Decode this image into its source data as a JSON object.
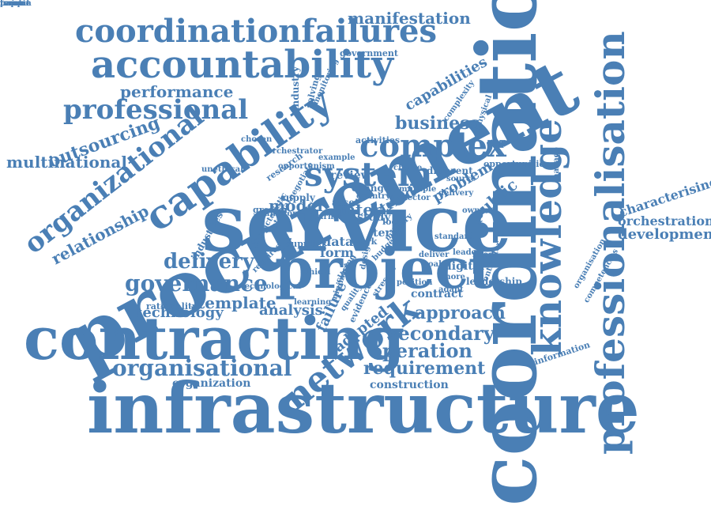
{
  "colors": {
    "word": "#4a7fb5",
    "background": "#ffffff"
  },
  "words": [
    "coordination",
    "procurement",
    "service",
    "infrastructure",
    "contracting",
    "project",
    "professionalisation",
    "knowledge",
    "capability",
    "network",
    "accountability",
    "coordinationfailures",
    "system",
    "complex",
    "organizational",
    "professional",
    "governance",
    "organisational",
    "delivery",
    "secondary",
    "operation",
    "requirement",
    "approach",
    "outsourcing",
    "multinational",
    "relationship",
    "performance",
    "business",
    "manifestation",
    "template",
    "technology",
    "analysis",
    "failure",
    "adapted",
    "problem",
    "public",
    "capabilities",
    "model",
    "inter",
    "development",
    "orchestration",
    "characterising",
    "information",
    "organization",
    "construction",
    "contract",
    "leadership",
    "digital",
    "data",
    "form",
    "review",
    "triad",
    "study",
    "term",
    "government",
    "industries",
    "evidence",
    "local",
    "leader",
    "opportunities",
    "organisation",
    "competencies",
    "different",
    "change",
    "supply",
    "asset",
    "greater",
    "industry",
    "solving",
    "monitoring",
    "complexity",
    "physical",
    "activities",
    "learning",
    "rationality",
    "technological",
    "supplier",
    "work",
    "more",
    "need",
    "stresses",
    "minimise",
    "standard",
    "quality",
    "ethical",
    "unethical",
    "chosen",
    "orchestrator",
    "opportunism",
    "example",
    "research",
    "function",
    "country",
    "sector",
    "delivery",
    "source",
    "owner",
    "choice",
    "manage",
    "position",
    "contractor",
    "internal",
    "characteristic",
    "requires",
    "negotiate",
    "military",
    "closing",
    "budget",
    "deliver",
    "goal",
    "multiple",
    "journal",
    "design",
    "adapt",
    "paper",
    "remain",
    "focal",
    "formal",
    "unique"
  ]
}
